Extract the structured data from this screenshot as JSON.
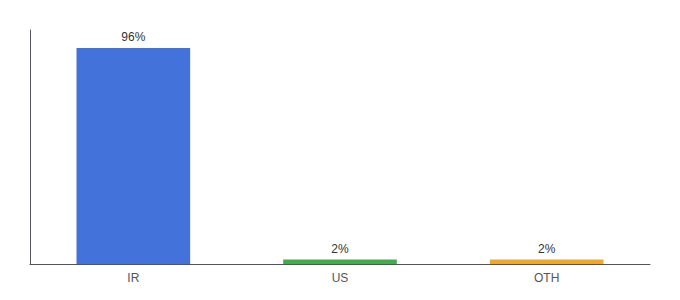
{
  "chart_data": {
    "type": "bar",
    "categories": [
      "IR",
      "US",
      "OTH"
    ],
    "values": [
      96,
      2,
      2
    ],
    "value_labels": [
      "96%",
      "2%",
      "2%"
    ],
    "colors": [
      "#4472db",
      "#3cb044",
      "#f5a623"
    ],
    "ylim": [
      0,
      104
    ],
    "data_labels": true,
    "tick_labels": "x",
    "grid": false
  }
}
